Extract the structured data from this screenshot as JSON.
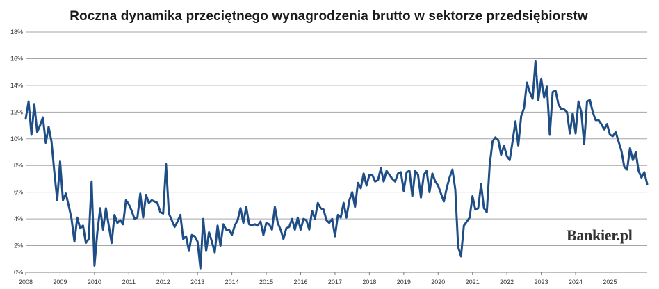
{
  "brand": {
    "name": "Bankier.pl"
  },
  "colors": {
    "line": "#1f4e87",
    "grid": "#a6a6a6",
    "axis": "#7f7f7f"
  },
  "chart_data": {
    "type": "line",
    "title": "Roczna dynamika przeciętnego wynagrodzenia brutto w sektorze przedsiębiorstw",
    "xlabel": "",
    "ylabel": "",
    "y_unit": "%",
    "ylim": [
      0,
      18
    ],
    "yticks": [
      0,
      2,
      4,
      6,
      8,
      10,
      12,
      14,
      16,
      18
    ],
    "ytick_labels": [
      "0%",
      "2%",
      "4%",
      "6%",
      "8%",
      "10%",
      "12%",
      "14%",
      "16%",
      "18%"
    ],
    "xticks": [
      "2008",
      "2009",
      "2010",
      "2011",
      "2012",
      "2013",
      "2014",
      "2015",
      "2016",
      "2017",
      "2018",
      "2019",
      "2020",
      "2021",
      "2022",
      "2023",
      "2024",
      "2025"
    ],
    "x_start": "2008-01",
    "frequency": "monthly",
    "grid": true,
    "legend": "none",
    "series": [
      {
        "values": [
          11.5,
          12.8,
          10.3,
          12.6,
          10.5,
          11.0,
          11.6,
          9.7,
          10.9,
          9.8,
          7.5,
          5.4,
          8.3,
          5.4,
          5.9,
          5.0,
          4.0,
          2.3,
          4.1,
          3.3,
          3.5,
          2.2,
          2.5,
          6.8,
          0.5,
          3.0,
          4.8,
          3.2,
          4.8,
          3.5,
          2.2,
          4.3,
          3.7,
          3.9,
          3.6,
          5.4,
          5.1,
          4.6,
          4.0,
          4.1,
          5.9,
          4.1,
          5.8,
          5.2,
          5.4,
          5.3,
          5.2,
          4.5,
          4.4,
          8.1,
          4.4,
          3.9,
          3.4,
          3.8,
          4.3,
          2.5,
          2.7,
          1.6,
          2.8,
          2.7,
          2.3,
          0.3,
          4.0,
          1.6,
          3.0,
          2.3,
          1.5,
          3.5,
          2.0,
          3.6,
          3.2,
          3.2,
          2.8,
          3.5,
          3.9,
          4.8,
          3.7,
          4.9,
          3.6,
          3.5,
          3.6,
          3.5,
          3.8,
          2.8,
          3.7,
          3.6,
          3.2,
          4.9,
          3.7,
          3.2,
          2.5,
          3.3,
          3.4,
          4.0,
          3.2,
          4.1,
          3.2,
          4.0,
          3.9,
          3.2,
          4.6,
          4.0,
          5.2,
          4.8,
          4.7,
          3.9,
          3.7,
          4.0,
          2.7,
          4.3,
          4.1,
          5.2,
          4.1,
          5.4,
          6.0,
          4.9,
          6.7,
          6.3,
          7.4,
          6.5,
          7.3,
          7.3,
          6.8,
          6.9,
          7.8,
          6.8,
          7.6,
          7.3,
          7.0,
          6.8,
          7.4,
          7.5,
          6.1,
          7.5,
          7.6,
          5.7,
          7.6,
          7.3,
          5.6,
          7.3,
          7.6,
          6.0,
          7.4,
          6.8,
          6.5,
          5.9,
          5.3,
          6.3,
          7.1,
          7.7,
          6.2,
          1.9,
          1.2,
          3.5,
          3.8,
          4.1,
          5.7,
          4.7,
          4.8,
          6.6,
          4.8,
          4.5,
          8.0,
          9.8,
          10.1,
          9.9,
          8.8,
          9.5,
          8.7,
          8.4,
          9.8,
          11.3,
          9.5,
          11.7,
          12.3,
          14.2,
          13.5,
          13.0,
          15.8,
          12.9,
          14.5,
          13.1,
          13.9,
          10.3,
          13.5,
          13.6,
          12.6,
          12.2,
          12.2,
          12.0,
          10.4,
          11.9,
          10.4,
          12.8,
          12.0,
          9.6,
          12.8,
          12.9,
          12.0,
          11.4,
          11.4,
          11.1,
          10.7,
          11.1,
          10.3,
          10.2,
          10.5,
          9.8,
          9.1,
          7.9,
          7.7,
          9.3,
          8.4,
          9.0,
          7.6,
          7.1,
          7.5,
          6.6
        ]
      }
    ]
  }
}
